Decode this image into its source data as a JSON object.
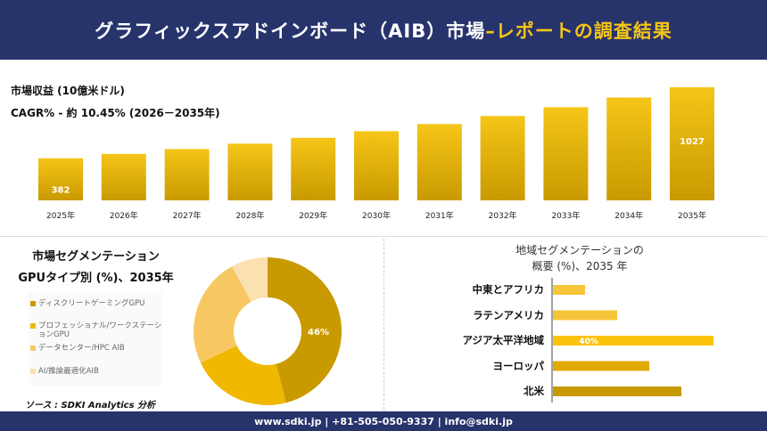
{
  "header": {
    "title": "グラフィックスアドインボード（AIB）市場",
    "title_accent": "–レポートの調査結果"
  },
  "colors": {
    "header_bg": "#27336b",
    "accent": "#f5c518",
    "bar_top": "#f5c518",
    "bar_bottom": "#c99a00"
  },
  "chart_data": [
    {
      "type": "bar",
      "ylabel": "市場収益 (10億米ドル)",
      "subtitle": "CAGR% - 約 10.45% (2026－2035年)",
      "categories": [
        "2025年",
        "2026年",
        "2027年",
        "2028年",
        "2029年",
        "2030年",
        "2031年",
        "2032年",
        "2033年",
        "2034年",
        "2035年"
      ],
      "values": [
        382,
        422,
        466,
        515,
        568,
        628,
        693,
        766,
        846,
        934,
        1027
      ],
      "data_labels": {
        "0": "382",
        "10": "1027"
      },
      "grid": false
    },
    {
      "type": "pie",
      "title_lines": [
        "市場セグメンテーション",
        "GPUタイプ別 (%)、2035年"
      ],
      "labels": [
        "ディスクリートゲーミングGPU",
        "プロフェッショナル/ワークステーションGPU",
        "データセンター/HPC AIB",
        "AI/推論最適化AIB"
      ],
      "values": [
        46,
        22,
        24,
        8
      ],
      "colors": [
        "#c99a00",
        "#f0b800",
        "#f7c862",
        "#fbe0b0"
      ],
      "data_label": "46%",
      "donut": true,
      "legend": "left"
    },
    {
      "type": "bar",
      "orientation": "horizontal",
      "title_lines": [
        "地域セグメンテーションの",
        "概要 (%)、2035 年"
      ],
      "categories": [
        "中東とアフリカ",
        "ラテンアメリカ",
        "アジア太平洋地域",
        "ヨーロッパ",
        "北米"
      ],
      "values": [
        8,
        16,
        40,
        24,
        32
      ],
      "colors": [
        "#f7c53a",
        "#f7c53a",
        "#fcc30d",
        "#e0aa00",
        "#c99a00"
      ],
      "data_label": "40%"
    }
  ],
  "source": "ソース : SDKI Analytics 分析",
  "footer": "www.sdki.jp | +81-505-050-9337 | info@sdki.jp"
}
